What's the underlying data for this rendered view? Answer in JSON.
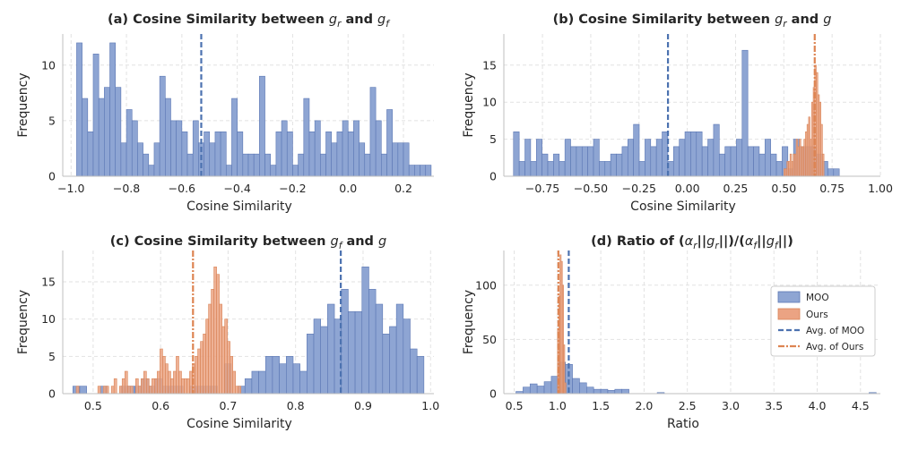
{
  "colors": {
    "moo_fill": "#8ea5d3",
    "moo_edge": "#5b77b4",
    "moo_line": "#4c72b0",
    "ours_fill": "#eba383",
    "ours_edge": "#d98457",
    "ours_line": "#dd8452",
    "grid": "#e2e2e2",
    "axis": "#bfbfbf"
  },
  "legend": {
    "moo": "MOO",
    "ours": "Ours",
    "avg_moo": "Avg. of MOO",
    "avg_ours": "Avg. of Ours"
  },
  "chart_data": [
    {
      "type": "bar",
      "panel": "a",
      "title": "(a) Cosine Similarity between gr and gf",
      "xlabel": "Cosine Similarity",
      "ylabel": "Frequency",
      "xlim": [
        -1.03,
        0.31
      ],
      "ylim": [
        0,
        12.8
      ],
      "xticks": [
        -1.0,
        -0.8,
        -0.6,
        -0.4,
        -0.2,
        0.0,
        0.2
      ],
      "xtick_labels": [
        "−1.0",
        "−0.8",
        "−0.6",
        "−0.4",
        "−0.2",
        "0.0",
        "0.2"
      ],
      "yticks": [
        0,
        5,
        10
      ],
      "bin_start": -0.98,
      "bin_width": 0.02,
      "series": [
        {
          "key": "moo",
          "values": [
            12,
            7,
            4,
            11,
            7,
            8,
            12,
            8,
            3,
            6,
            5,
            3,
            2,
            1,
            3,
            9,
            7,
            5,
            5,
            4,
            2,
            5,
            3,
            4,
            3,
            4,
            4,
            1,
            7,
            4,
            2,
            2,
            2,
            9,
            2,
            1,
            4,
            5,
            4,
            1,
            2,
            7,
            4,
            5,
            2,
            4,
            3,
            4,
            5,
            4,
            5,
            3,
            2,
            8,
            5,
            2,
            6,
            3,
            3,
            3,
            1,
            1,
            1,
            1
          ]
        }
      ],
      "avg_lines": [
        {
          "key": "moo",
          "x": -0.53
        }
      ]
    },
    {
      "type": "bar",
      "panel": "b",
      "title": "(b) Cosine Similarity between gr and g",
      "xlabel": "Cosine Similarity",
      "ylabel": "Frequency",
      "xlim": [
        -0.95,
        1.0
      ],
      "ylim": [
        0,
        19.2
      ],
      "xticks": [
        -0.75,
        -0.5,
        -0.25,
        0.0,
        0.25,
        0.5,
        0.75,
        1.0
      ],
      "xtick_labels": [
        "−0.75",
        "−0.50",
        "−0.25",
        "0.00",
        "0.25",
        "0.50",
        "0.75",
        "1.00"
      ],
      "yticks": [
        0,
        5,
        10,
        15
      ],
      "series": [
        {
          "key": "moo",
          "bin_start": -0.9,
          "bin_width": 0.0296,
          "values": [
            6,
            2,
            5,
            2,
            5,
            3,
            2,
            3,
            2,
            5,
            4,
            4,
            4,
            4,
            5,
            2,
            2,
            3,
            3,
            4,
            5,
            7,
            2,
            5,
            4,
            5,
            6,
            2,
            4,
            5,
            6,
            6,
            6,
            4,
            5,
            7,
            3,
            4,
            4,
            5,
            17,
            4,
            4,
            3,
            5,
            3,
            2,
            4,
            1,
            5,
            4,
            4,
            4,
            3,
            2,
            1,
            1,
            0,
            0,
            0,
            0,
            0,
            0,
            0,
            0,
            0,
            0,
            0,
            1
          ]
        },
        {
          "key": "ours",
          "bin_start": 0.5,
          "bin_width": 0.008,
          "values": [
            1,
            1,
            2,
            2,
            3,
            2,
            3,
            3,
            5,
            4,
            5,
            4,
            4,
            5,
            6,
            7,
            8,
            5,
            10,
            12,
            15,
            14,
            11,
            10,
            7,
            3
          ]
        }
      ],
      "avg_lines": [
        {
          "key": "moo",
          "x": -0.1
        },
        {
          "key": "ours",
          "x": 0.66
        }
      ]
    },
    {
      "type": "bar",
      "panel": "c",
      "title": "(c) Cosine Similarity between gf and g",
      "xlabel": "Cosine Similarity",
      "ylabel": "Frequency",
      "xlim": [
        0.455,
        1.005
      ],
      "ylim": [
        0,
        19.2
      ],
      "xticks": [
        0.5,
        0.6,
        0.7,
        0.8,
        0.9,
        1.0
      ],
      "xtick_labels": [
        "0.5",
        "0.6",
        "0.7",
        "0.8",
        "0.9",
        "1.0"
      ],
      "yticks": [
        0,
        5,
        10,
        15
      ],
      "series": [
        {
          "key": "moo",
          "bin_start": 0.47,
          "bin_width": 0.0102,
          "values": [
            1,
            1,
            0,
            0,
            1,
            0,
            0,
            1,
            1,
            1,
            2,
            1,
            2,
            1,
            1,
            1,
            0,
            1,
            1,
            1,
            1,
            0,
            4,
            0,
            1,
            2,
            3,
            3,
            5,
            5,
            4,
            5,
            4,
            3,
            8,
            10,
            9,
            12,
            10,
            14,
            11,
            11,
            17,
            14,
            12,
            8,
            9,
            12,
            10,
            6,
            5
          ]
        },
        {
          "key": "ours",
          "bin_start": 0.475,
          "bin_width": 0.004,
          "values": [
            1,
            0,
            0,
            0,
            0,
            0,
            0,
            0,
            1,
            0,
            1,
            1,
            0,
            1,
            2,
            0,
            1,
            2,
            3,
            1,
            1,
            0,
            2,
            1,
            2,
            3,
            2,
            1,
            2,
            2,
            3,
            6,
            5,
            4,
            3,
            2,
            3,
            5,
            3,
            2,
            2,
            2,
            3,
            4,
            5,
            6,
            7,
            8,
            10,
            12,
            14,
            17,
            16,
            12,
            9,
            10,
            7,
            5,
            3,
            1,
            1
          ]
        }
      ],
      "avg_lines": [
        {
          "key": "moo",
          "x": 0.867
        },
        {
          "key": "ours",
          "x": 0.648
        }
      ]
    },
    {
      "type": "bar",
      "panel": "d",
      "title": "(d) Ratio of (αr||gr||)/(αf||gf||)",
      "xlabel": "Ratio",
      "ylabel": "Frequency",
      "xlim": [
        0.38,
        4.73
      ],
      "ylim": [
        0,
        132
      ],
      "xticks": [
        0.5,
        1.0,
        1.5,
        2.0,
        2.5,
        3.0,
        3.5,
        4.0,
        4.5
      ],
      "xtick_labels": [
        "0.5",
        "1.0",
        "1.5",
        "2.0",
        "2.5",
        "3.0",
        "3.5",
        "4.0",
        "4.5"
      ],
      "yticks": [
        0,
        50,
        100
      ],
      "series": [
        {
          "key": "moo",
          "bin_start": 0.52,
          "bin_width": 0.0816,
          "values": [
            2,
            6,
            9,
            7,
            11,
            16,
            29,
            27,
            14,
            10,
            6,
            4,
            4,
            3,
            4,
            4,
            0,
            0,
            0,
            0,
            1,
            0,
            0,
            0,
            0,
            0,
            0,
            0,
            0,
            0,
            0,
            0,
            0,
            0,
            0,
            0,
            0,
            0,
            0,
            0,
            0,
            0,
            0,
            0,
            0,
            0,
            0,
            0,
            0,
            0,
            1
          ]
        },
        {
          "key": "ours",
          "bin_start": 1.0,
          "bin_width": 0.014,
          "values": [
            60,
            90,
            128,
            122,
            100,
            45,
            10
          ]
        }
      ],
      "avg_lines": [
        {
          "key": "moo",
          "x": 1.13
        },
        {
          "key": "ours",
          "x": 1.01
        }
      ]
    }
  ]
}
